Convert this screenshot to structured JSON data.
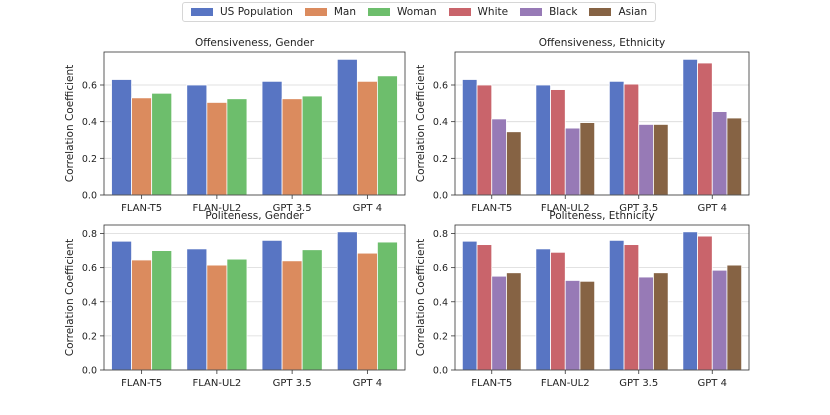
{
  "legend": [
    {
      "name": "US Population",
      "color": "#5875c3"
    },
    {
      "name": "Man",
      "color": "#db8b5e"
    },
    {
      "name": "Woman",
      "color": "#6dbe6c"
    },
    {
      "name": "White",
      "color": "#c9646b"
    },
    {
      "name": "Black",
      "color": "#977ab6"
    },
    {
      "name": "Asian",
      "color": "#866344"
    }
  ],
  "chart_data": [
    {
      "type": "bar",
      "title": "Offensiveness, Gender",
      "xlabel": "",
      "ylabel": "Correlation Coefficient",
      "ylim": [
        0,
        0.78
      ],
      "yticks": [
        "0.0",
        "0.2",
        "0.4",
        "0.6"
      ],
      "grid": true,
      "categories": [
        "FLAN-T5",
        "FLAN-UL2",
        "GPT 3.5",
        "GPT 4"
      ],
      "series": [
        {
          "name": "US Population",
          "color": "#5875c3",
          "values": [
            0.63,
            0.6,
            0.62,
            0.74
          ]
        },
        {
          "name": "Man",
          "color": "#db8b5e",
          "values": [
            0.53,
            0.505,
            0.525,
            0.62
          ]
        },
        {
          "name": "Woman",
          "color": "#6dbe6c",
          "values": [
            0.555,
            0.525,
            0.54,
            0.65
          ]
        }
      ]
    },
    {
      "type": "bar",
      "title": "Offensiveness, Ethnicity",
      "xlabel": "",
      "ylabel": "Correlation Coefficient",
      "ylim": [
        0,
        0.78
      ],
      "yticks": [
        "0.0",
        "0.2",
        "0.4",
        "0.6"
      ],
      "grid": true,
      "categories": [
        "FLAN-T5",
        "FLAN-UL2",
        "GPT 3.5",
        "GPT 4"
      ],
      "series": [
        {
          "name": "US Population",
          "color": "#5875c3",
          "values": [
            0.63,
            0.6,
            0.62,
            0.74
          ]
        },
        {
          "name": "White",
          "color": "#c9646b",
          "values": [
            0.6,
            0.575,
            0.605,
            0.72
          ]
        },
        {
          "name": "Black",
          "color": "#977ab6",
          "values": [
            0.415,
            0.365,
            0.385,
            0.455
          ]
        },
        {
          "name": "Asian",
          "color": "#866344",
          "values": [
            0.345,
            0.395,
            0.385,
            0.42
          ]
        }
      ]
    },
    {
      "type": "bar",
      "title": "Politeness, Gender",
      "xlabel": "",
      "ylabel": "Correlation Coefficient",
      "ylim": [
        0,
        0.85
      ],
      "yticks": [
        "0.0",
        "0.2",
        "0.4",
        "0.6",
        "0.8"
      ],
      "grid": true,
      "categories": [
        "FLAN-T5",
        "FLAN-UL2",
        "GPT 3.5",
        "GPT 4"
      ],
      "series": [
        {
          "name": "US Population",
          "color": "#5875c3",
          "values": [
            0.755,
            0.71,
            0.76,
            0.81
          ]
        },
        {
          "name": "Man",
          "color": "#db8b5e",
          "values": [
            0.645,
            0.615,
            0.64,
            0.685
          ]
        },
        {
          "name": "Woman",
          "color": "#6dbe6c",
          "values": [
            0.7,
            0.65,
            0.705,
            0.75
          ]
        }
      ]
    },
    {
      "type": "bar",
      "title": "Politeness, Ethnicity",
      "xlabel": "",
      "ylabel": "Correlation Coefficient",
      "ylim": [
        0,
        0.85
      ],
      "yticks": [
        "0.0",
        "0.2",
        "0.4",
        "0.6",
        "0.8"
      ],
      "grid": true,
      "categories": [
        "FLAN-T5",
        "FLAN-UL2",
        "GPT 3.5",
        "GPT 4"
      ],
      "series": [
        {
          "name": "US Population",
          "color": "#5875c3",
          "values": [
            0.755,
            0.71,
            0.76,
            0.81
          ]
        },
        {
          "name": "White",
          "color": "#c9646b",
          "values": [
            0.735,
            0.69,
            0.735,
            0.785
          ]
        },
        {
          "name": "Black",
          "color": "#977ab6",
          "values": [
            0.55,
            0.525,
            0.545,
            0.585
          ]
        },
        {
          "name": "Asian",
          "color": "#866344",
          "values": [
            0.57,
            0.52,
            0.57,
            0.615
          ]
        }
      ]
    }
  ]
}
